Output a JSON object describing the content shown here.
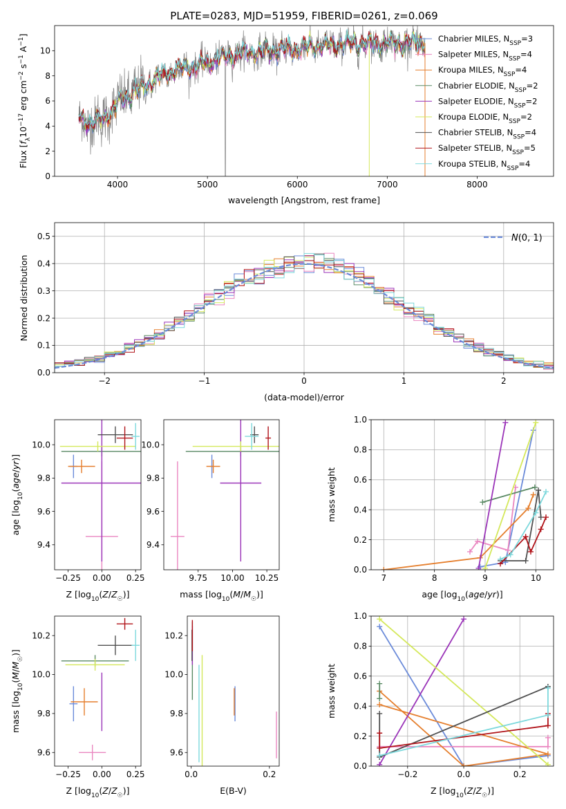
{
  "figure_title": "PLATE=0283, MJD=51959, FIBERID=0261, z=0.069",
  "colors": {
    "Chabrier MILES": "#6a8ad9",
    "Salpeter MILES": "#ea86c0",
    "Kroupa MILES": "#e57e2c",
    "Chabrier ELODIE": "#5a8a64",
    "Salpeter ELODIE": "#9a33b8",
    "Kroupa ELODIE": "#d4e85a",
    "Chabrier STELIB": "#4f4f4f",
    "Salpeter STELIB": "#b01218",
    "Kroupa STELIB": "#7cd8dc",
    "data": "#7f7f7f",
    "gaussian": "#6a8ad9"
  },
  "chart_data": [
    {
      "id": "spectrum",
      "type": "line",
      "title": "PLATE=0283, MJD=51959, FIBERID=0261, z=0.069",
      "xlabel": "wavelength [Angstrom, rest frame]",
      "ylabel": "Flux [f_λ10^-17 erg cm^-2 s^-1 A^-1]",
      "xlim": [
        3300,
        8850
      ],
      "ylim": [
        0,
        12
      ],
      "xticks": [
        4000,
        5000,
        6000,
        7000,
        8000
      ],
      "yticks": [
        0,
        2,
        4,
        6,
        8,
        10
      ],
      "grid": false,
      "legend_position": "top-right",
      "legend": [
        "Chabrier MILES, N_SSP=3",
        "Salpeter MILES, N_SSP=4",
        "Kroupa MILES, N_SSP=4",
        "Chabrier ELODIE, N_SSP=2",
        "Salpeter ELODIE, N_SSP=2",
        "Kroupa ELODIE, N_SSP=2",
        "Chabrier STELIB, N_SSP=4",
        "Salpeter STELIB, N_SSP=5",
        "Kroupa STELIB, N_SSP=4"
      ],
      "continuum_knots": [
        [
          3560,
          4.8
        ],
        [
          3700,
          4.2
        ],
        [
          3850,
          4.6
        ],
        [
          3950,
          5.3
        ],
        [
          4050,
          6.2
        ],
        [
          4150,
          6.6
        ],
        [
          4300,
          7.2
        ],
        [
          4500,
          8.0
        ],
        [
          4700,
          8.6
        ],
        [
          4900,
          8.8
        ],
        [
          5100,
          9.3
        ],
        [
          5300,
          9.7
        ],
        [
          5600,
          9.9
        ],
        [
          6000,
          10.2
        ],
        [
          6500,
          10.5
        ],
        [
          7000,
          10.6
        ],
        [
          7400,
          10.6
        ]
      ],
      "data_range": [
        3570,
        7420
      ],
      "model_range": [
        3580,
        7410
      ]
    },
    {
      "id": "residuals",
      "type": "line",
      "xlabel": "(data-model)/error",
      "ylabel": "Normed distribution",
      "xlim": [
        -2.5,
        2.5
      ],
      "ylim": [
        0,
        0.55
      ],
      "xticks": [
        -2,
        -1,
        0,
        1,
        2
      ],
      "yticks": [
        0.0,
        0.1,
        0.2,
        0.3,
        0.4,
        0.5
      ],
      "grid": true,
      "legend_position": "top-right",
      "legend": [
        "N(0,1)"
      ],
      "bins": [
        -2.5,
        2.5,
        50
      ]
    },
    {
      "id": "age-Z",
      "type": "scatter",
      "xlabel": "Z [log10(Z/Z☉)]",
      "ylabel": "age [log10(age/yr)]",
      "xlim": [
        -0.35,
        0.29
      ],
      "ylim": [
        9.25,
        10.15
      ],
      "xticks": [
        -0.25,
        0.0,
        0.25
      ],
      "yticks": [
        9.4,
        9.6,
        9.8,
        10.0
      ],
      "grid": false,
      "points": [
        {
          "model": "Chabrier MILES",
          "x": -0.21,
          "xerr": 0.03,
          "y": 9.87,
          "yerr": 0.07
        },
        {
          "model": "Salpeter MILES",
          "x": 0.0,
          "xerr": 0.12,
          "y": 9.45,
          "yerr": 0.45
        },
        {
          "model": "Kroupa MILES",
          "x": -0.15,
          "xerr": 0.1,
          "y": 9.87,
          "yerr": 0.04
        },
        {
          "model": "Chabrier ELODIE",
          "x": 0.0,
          "xerr": 0.3,
          "y": 9.96,
          "yerr": 0.03
        },
        {
          "model": "Salpeter ELODIE",
          "x": 0.0,
          "xerr": 0.3,
          "y": 9.77,
          "yerr": 0.47
        },
        {
          "model": "Kroupa ELODIE",
          "x": -0.03,
          "xerr": 0.28,
          "y": 9.99,
          "yerr": 0.03
        },
        {
          "model": "Chabrier STELIB",
          "x": 0.1,
          "xerr": 0.13,
          "y": 10.06,
          "yerr": 0.05
        },
        {
          "model": "Salpeter STELIB",
          "x": 0.17,
          "xerr": 0.06,
          "y": 10.04,
          "yerr": 0.07
        },
        {
          "model": "Kroupa STELIB",
          "x": 0.25,
          "xerr": 0.03,
          "y": 10.05,
          "yerr": 0.08
        }
      ]
    },
    {
      "id": "age-mass",
      "type": "scatter",
      "xlabel": "mass [log10(M/M☉)]",
      "ylabel": "",
      "xlim": [
        9.5,
        10.34
      ],
      "ylim": [
        9.25,
        10.15
      ],
      "xticks": [
        9.75,
        10.0,
        10.25
      ],
      "yticks": [
        9.4,
        9.6,
        9.8,
        10.0
      ],
      "grid": false,
      "points": [
        {
          "model": "Chabrier MILES",
          "x": 9.85,
          "xerr": 0.01,
          "y": 9.87,
          "yerr": 0.07
        },
        {
          "model": "Salpeter MILES",
          "x": 9.6,
          "xerr": 0.05,
          "y": 9.45,
          "yerr": 0.45
        },
        {
          "model": "Kroupa MILES",
          "x": 9.86,
          "xerr": 0.05,
          "y": 9.87,
          "yerr": 0.04
        },
        {
          "model": "Chabrier ELODIE",
          "x": 10.06,
          "xerr": 0.4,
          "y": 9.96,
          "yerr": 0.03
        },
        {
          "model": "Salpeter ELODIE",
          "x": 10.06,
          "xerr": 0.15,
          "y": 9.77,
          "yerr": 0.47
        },
        {
          "model": "Kroupa ELODIE",
          "x": 10.06,
          "xerr": 0.35,
          "y": 9.99,
          "yerr": 0.03
        },
        {
          "model": "Chabrier STELIB",
          "x": 10.16,
          "xerr": 0.03,
          "y": 10.06,
          "yerr": 0.05
        },
        {
          "model": "Salpeter STELIB",
          "x": 10.26,
          "xerr": 0.02,
          "y": 10.04,
          "yerr": 0.07
        },
        {
          "model": "Kroupa STELIB",
          "x": 10.14,
          "xerr": 0.05,
          "y": 10.05,
          "yerr": 0.08
        }
      ]
    },
    {
      "id": "weight-age",
      "type": "line",
      "xlabel": "age [log10(age/yr)]",
      "ylabel": "mass weight",
      "xlim": [
        6.75,
        10.35
      ],
      "ylim": [
        0,
        1
      ],
      "xticks": [
        7,
        8,
        9,
        10
      ],
      "yticks": [
        0.0,
        0.2,
        0.4,
        0.6,
        0.8,
        1.0
      ],
      "grid": true,
      "series": [
        {
          "model": "Chabrier MILES",
          "x": [
            8.9,
            9.4,
            9.95
          ],
          "y": [
            0.02,
            0.05,
            0.93
          ]
        },
        {
          "model": "Salpeter MILES",
          "x": [
            8.7,
            8.85,
            9.45,
            9.6
          ],
          "y": [
            0.12,
            0.19,
            0.13,
            0.55
          ]
        },
        {
          "model": "Kroupa MILES",
          "x": [
            7.0,
            8.9,
            9.85,
            9.95
          ],
          "y": [
            0.0,
            0.08,
            0.41,
            0.5
          ]
        },
        {
          "model": "Chabrier ELODIE",
          "x": [
            8.95,
            9.98
          ],
          "y": [
            0.45,
            0.55
          ]
        },
        {
          "model": "Salpeter ELODIE",
          "x": [
            8.87,
            9.4
          ],
          "y": [
            0.01,
            0.98
          ]
        },
        {
          "model": "Kroupa ELODIE",
          "x": [
            9.0,
            10.0
          ],
          "y": [
            0.01,
            0.98
          ]
        },
        {
          "model": "Chabrier STELIB",
          "x": [
            9.3,
            9.8,
            10.05,
            10.1
          ],
          "y": [
            0.06,
            0.06,
            0.53,
            0.35
          ]
        },
        {
          "model": "Salpeter STELIB",
          "x": [
            9.3,
            9.8,
            9.9,
            10.1,
            10.2
          ],
          "y": [
            0.04,
            0.22,
            0.12,
            0.27,
            0.35
          ]
        },
        {
          "model": "Kroupa STELIB",
          "x": [
            9.3,
            9.5,
            10.0,
            10.2
          ],
          "y": [
            0.07,
            0.1,
            0.38,
            0.52
          ]
        }
      ]
    },
    {
      "id": "mass-Z",
      "type": "scatter",
      "xlabel": "Z [log10(Z/Z☉)]",
      "ylabel": "mass [log10(M/M☉)]",
      "xlim": [
        -0.35,
        0.29
      ],
      "ylim": [
        9.53,
        10.3
      ],
      "xticks": [
        -0.25,
        0.0,
        0.25
      ],
      "yticks": [
        9.6,
        9.8,
        10.0,
        10.2
      ],
      "grid": false,
      "points": [
        {
          "model": "Chabrier MILES",
          "x": -0.21,
          "xerr": 0.03,
          "y": 9.85,
          "yerr": 0.09
        },
        {
          "model": "Salpeter MILES",
          "x": -0.07,
          "xerr": 0.1,
          "y": 9.6,
          "yerr": 0.04
        },
        {
          "model": "Kroupa MILES",
          "x": -0.13,
          "xerr": 0.1,
          "y": 9.86,
          "yerr": 0.07
        },
        {
          "model": "Chabrier ELODIE",
          "x": -0.05,
          "xerr": 0.25,
          "y": 10.07,
          "yerr": 0.03
        },
        {
          "model": "Salpeter ELODIE",
          "x": 0.0,
          "xerr": 0.0,
          "y": 9.86,
          "yerr": 0.15
        },
        {
          "model": "Kroupa ELODIE",
          "x": -0.05,
          "xerr": 0.22,
          "y": 10.05,
          "yerr": 0.03
        },
        {
          "model": "Chabrier STELIB",
          "x": 0.1,
          "xerr": 0.13,
          "y": 10.15,
          "yerr": 0.05
        },
        {
          "model": "Salpeter STELIB",
          "x": 0.17,
          "xerr": 0.06,
          "y": 10.26,
          "yerr": 0.03
        },
        {
          "model": "Kroupa STELIB",
          "x": 0.25,
          "xerr": 0.03,
          "y": 10.15,
          "yerr": 0.08
        }
      ]
    },
    {
      "id": "mass-EBV",
      "type": "scatter",
      "xlabel": "E(B-V)",
      "ylabel": "",
      "xlim": [
        -0.01,
        0.225
      ],
      "ylim": [
        9.53,
        10.3
      ],
      "xticks": [
        0.0,
        0.2
      ],
      "yticks": [
        9.6,
        9.8,
        10.0,
        10.2
      ],
      "grid": false,
      "points": [
        {
          "model": "Chabrier MILES",
          "x": 0.112,
          "xerr": 0.0,
          "y": 9.85,
          "yerr": 0.09
        },
        {
          "model": "Salpeter MILES",
          "x": 0.218,
          "xerr": 0.0,
          "y": 9.69,
          "yerr": 0.12
        },
        {
          "model": "Kroupa MILES",
          "x": 0.11,
          "xerr": 0.0,
          "y": 9.86,
          "yerr": 0.07
        },
        {
          "model": "Chabrier ELODIE",
          "x": 0.003,
          "xerr": 0.0,
          "y": 10.07,
          "yerr": 0.2
        },
        {
          "model": "Salpeter ELODIE",
          "x": 0.003,
          "xerr": 0.0,
          "y": 10.15,
          "yerr": 0.1
        },
        {
          "model": "Kroupa ELODIE",
          "x": 0.028,
          "xerr": 0.0,
          "y": 9.8,
          "yerr": 0.3
        },
        {
          "model": "Chabrier STELIB",
          "x": 0.002,
          "xerr": 0.0,
          "y": 10.15,
          "yerr": 0.08
        },
        {
          "model": "Salpeter STELIB",
          "x": 0.003,
          "xerr": 0.0,
          "y": 10.2,
          "yerr": 0.08
        },
        {
          "model": "Kroupa STELIB",
          "x": 0.02,
          "xerr": 0.0,
          "y": 9.8,
          "yerr": 0.25
        }
      ]
    },
    {
      "id": "weight-Z",
      "type": "line",
      "xlabel": "Z [log10(Z/Z☉)]",
      "ylabel": "mass weight",
      "xlim": [
        -0.33,
        0.32
      ],
      "ylim": [
        0,
        1
      ],
      "xticks": [
        -0.2,
        0.0,
        0.2
      ],
      "yticks": [
        0.0,
        0.2,
        0.4,
        0.6,
        0.8,
        1.0
      ],
      "grid": true,
      "series": [
        {
          "model": "Chabrier MILES",
          "x": [
            -0.3,
            0.0,
            0.3
          ],
          "y": [
            0.93,
            0.0,
            0.07
          ]
        },
        {
          "model": "Salpeter MILES",
          "x": [
            -0.3,
            0.3,
            0.3
          ],
          "y": [
            0.13,
            0.13,
            0.19
          ]
        },
        {
          "model": "Kroupa MILES",
          "x": [
            -0.3,
            0.0,
            0.3,
            -0.3
          ],
          "y": [
            0.5,
            0.0,
            0.08,
            0.41
          ]
        },
        {
          "model": "Chabrier ELODIE",
          "x": [
            -0.3,
            -0.3
          ],
          "y": [
            0.45,
            0.55
          ]
        },
        {
          "model": "Salpeter ELODIE",
          "x": [
            -0.3,
            0.0
          ],
          "y": [
            0.01,
            0.98
          ]
        },
        {
          "model": "Kroupa ELODIE",
          "x": [
            -0.3,
            0.3
          ],
          "y": [
            0.98,
            0.01
          ]
        },
        {
          "model": "Chabrier STELIB",
          "x": [
            -0.3,
            -0.3,
            0.3
          ],
          "y": [
            0.35,
            0.06,
            0.53
          ]
        },
        {
          "model": "Salpeter STELIB",
          "x": [
            -0.3,
            -0.3,
            0.3,
            0.3
          ],
          "y": [
            0.22,
            0.12,
            0.27,
            0.35
          ]
        },
        {
          "model": "Kroupa STELIB",
          "x": [
            -0.3,
            0.3,
            0.3
          ],
          "y": [
            0.07,
            0.34,
            0.52
          ]
        }
      ]
    }
  ]
}
